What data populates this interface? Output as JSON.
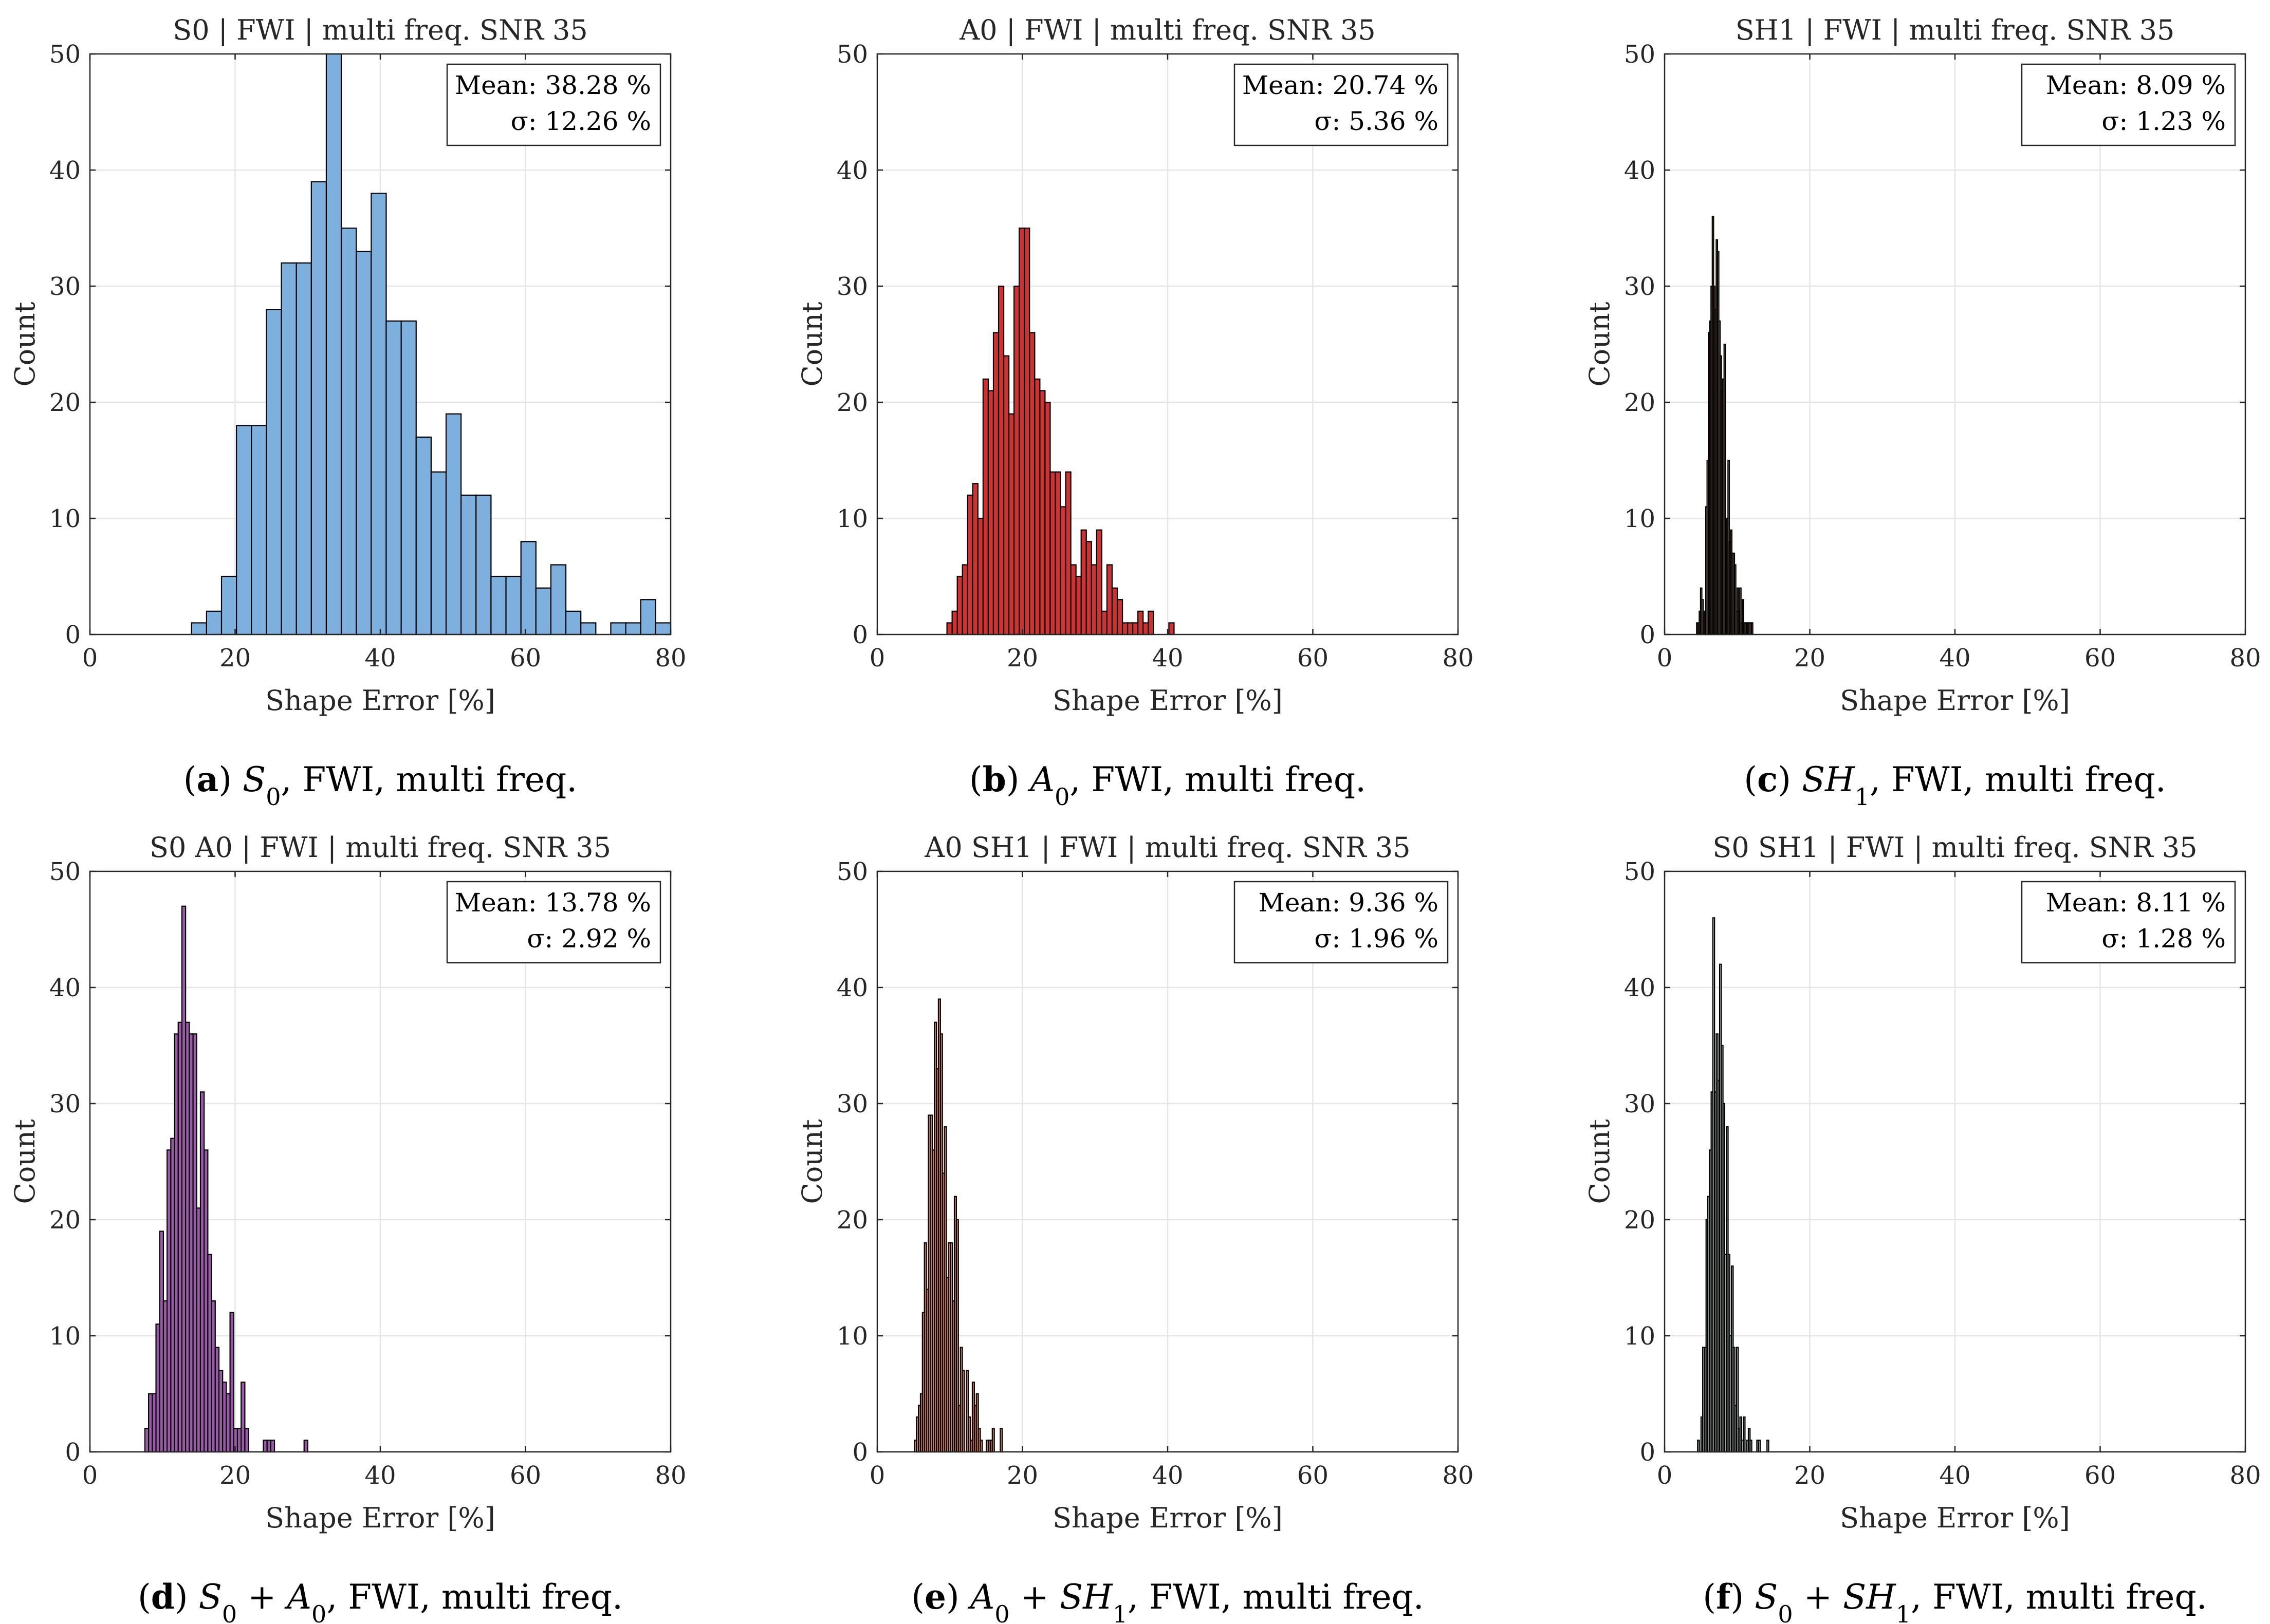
{
  "chart_data": [
    {
      "type": "bar",
      "panel": "a",
      "title": "S0 | FWI | multi freq. SNR 35",
      "xlabel": "Shape Error [%]",
      "ylabel": "Count",
      "xlim": [
        0,
        80
      ],
      "ylim": [
        0,
        50
      ],
      "xticks": [
        "0",
        "20",
        "40",
        "60",
        "80"
      ],
      "yticks": [
        "0",
        "10",
        "20",
        "30",
        "40",
        "50"
      ],
      "grid": true,
      "legend_lines": [
        "Mean: 38.28 %",
        "σ: 12.26 %"
      ],
      "legend_position": "top-right",
      "color": "#7eb0de",
      "bin_start": 14,
      "bin_width": 2.0625,
      "counts": [
        1,
        2,
        5,
        18,
        18,
        28,
        32,
        32,
        39,
        50,
        35,
        33,
        38,
        27,
        27,
        17,
        14,
        19,
        12,
        12,
        5,
        5,
        8,
        4,
        6,
        2,
        1,
        0,
        1,
        1,
        3,
        1
      ],
      "caption": {
        "label": "a",
        "parts": [
          {
            "t": "S",
            "i": true
          },
          {
            "t": "0",
            "sub": true
          },
          {
            "t": ", FWI, multi freq."
          }
        ]
      }
    },
    {
      "type": "bar",
      "panel": "b",
      "title": "A0 | FWI | multi freq. SNR 35",
      "xlabel": "Shape Error [%]",
      "ylabel": "Count",
      "xlim": [
        0,
        80
      ],
      "ylim": [
        0,
        50
      ],
      "xticks": [
        "0",
        "20",
        "40",
        "60",
        "80"
      ],
      "yticks": [
        "0",
        "10",
        "20",
        "30",
        "40",
        "50"
      ],
      "grid": true,
      "legend_lines": [
        "Mean: 20.74 %",
        "σ: 5.36 %"
      ],
      "legend_position": "top-right",
      "color": "#cd3333",
      "bin_start": 9.6,
      "bin_width": 0.711,
      "counts": [
        1,
        2,
        5,
        6,
        12,
        13,
        10,
        22,
        21,
        26,
        30,
        24,
        19,
        30,
        35,
        35,
        26,
        22,
        21,
        20,
        14,
        14,
        11,
        14,
        6,
        5,
        9,
        8,
        6,
        9,
        2,
        6,
        4,
        3,
        1,
        1,
        1,
        2,
        1,
        2,
        0,
        0,
        0,
        1
      ],
      "caption": {
        "label": "b",
        "parts": [
          {
            "t": "A",
            "i": true
          },
          {
            "t": "0",
            "sub": true
          },
          {
            "t": ", FWI, multi freq."
          }
        ]
      }
    },
    {
      "type": "bar",
      "panel": "c",
      "title": "SH1 | FWI | multi freq. SNR 35",
      "xlabel": "Shape Error [%]",
      "ylabel": "Count",
      "xlim": [
        0,
        80
      ],
      "ylim": [
        0,
        50
      ],
      "xticks": [
        "0",
        "20",
        "40",
        "60",
        "80"
      ],
      "yticks": [
        "0",
        "10",
        "20",
        "30",
        "40",
        "50"
      ],
      "grid": true,
      "legend_lines": [
        "Mean: 8.09 %",
        "σ: 1.23 %"
      ],
      "legend_position": "top-right",
      "color": "#edc04f",
      "bin_start": 4.41,
      "bin_width": 0.18,
      "counts": [
        1,
        1,
        2,
        4,
        3,
        2,
        2,
        11,
        15,
        26,
        27,
        30,
        36,
        30,
        28,
        34,
        33,
        27,
        24,
        21,
        22,
        25,
        10,
        10,
        15,
        8,
        9,
        7,
        7,
        6,
        2,
        4,
        2,
        4,
        1,
        3,
        1,
        1,
        1,
        1,
        1,
        1,
        1
      ],
      "caption": {
        "label": "c",
        "parts": [
          {
            "t": "SH",
            "i": true
          },
          {
            "t": "1",
            "sub": true
          },
          {
            "t": ", FWI, multi freq."
          }
        ]
      }
    },
    {
      "type": "bar",
      "panel": "d",
      "title": "S0 A0 | FWI | multi freq. SNR 35",
      "xlabel": "Shape Error [%]",
      "ylabel": "Count",
      "xlim": [
        0,
        80
      ],
      "ylim": [
        0,
        50
      ],
      "xticks": [
        "0",
        "20",
        "40",
        "60",
        "80"
      ],
      "yticks": [
        "0",
        "10",
        "20",
        "30",
        "40",
        "50"
      ],
      "grid": true,
      "legend_lines": [
        "Mean: 13.78 %",
        "σ: 2.92 %"
      ],
      "legend_position": "top-right",
      "color": "#9a5aa7",
      "bin_start": 7.57,
      "bin_width": 0.51,
      "counts": [
        2,
        5,
        5,
        11,
        19,
        13,
        26,
        27,
        36,
        37,
        47,
        37,
        36,
        36,
        21,
        31,
        26,
        17,
        13,
        9,
        7,
        6,
        5,
        12,
        2,
        2,
        6,
        2,
        0,
        0,
        0,
        0,
        1,
        1,
        1,
        0,
        0,
        0,
        0,
        0,
        0,
        0,
        0,
        1
      ],
      "caption": {
        "label": "d",
        "parts": [
          {
            "t": "S",
            "i": true
          },
          {
            "t": "0",
            "sub": true
          },
          {
            "t": " + "
          },
          {
            "t": "A",
            "i": true
          },
          {
            "t": "0",
            "sub": true
          },
          {
            "t": ", FWI, multi freq."
          }
        ]
      }
    },
    {
      "type": "bar",
      "panel": "e",
      "title": "A0 SH1 | FWI | multi freq. SNR 35",
      "xlabel": "Shape Error [%]",
      "ylabel": "Count",
      "xlim": [
        0,
        80
      ],
      "ylim": [
        0,
        50
      ],
      "xticks": [
        "0",
        "20",
        "40",
        "60",
        "80"
      ],
      "yticks": [
        "0",
        "10",
        "20",
        "30",
        "40",
        "50"
      ],
      "grid": true,
      "legend_lines": [
        "Mean: 9.36 %",
        "σ: 1.96 %"
      ],
      "legend_position": "top-right",
      "color": "#e0843c",
      "bin_start": 5.12,
      "bin_width": 0.275,
      "counts": [
        1,
        3,
        4,
        5,
        12,
        18,
        14,
        29,
        29,
        26,
        37,
        33,
        39,
        36,
        24,
        28,
        15,
        18,
        18,
        13,
        22,
        20,
        4,
        9,
        7,
        0,
        7,
        3,
        1,
        6,
        4,
        5,
        2,
        1,
        0,
        0,
        1,
        1,
        1,
        2,
        0,
        0,
        0,
        2
      ],
      "caption": {
        "label": "e",
        "parts": [
          {
            "t": "A",
            "i": true
          },
          {
            "t": "0",
            "sub": true
          },
          {
            "t": " + "
          },
          {
            "t": "SH",
            "i": true
          },
          {
            "t": "1",
            "sub": true
          },
          {
            "t": ", FWI, multi freq."
          }
        ]
      }
    },
    {
      "type": "bar",
      "panel": "f",
      "title": "S0 SH1 | FWI | multi freq. SNR 35",
      "xlabel": "Shape Error [%]",
      "ylabel": "Count",
      "xlim": [
        0,
        80
      ],
      "ylim": [
        0,
        50
      ],
      "xticks": [
        "0",
        "20",
        "40",
        "60",
        "80"
      ],
      "yticks": [
        "0",
        "10",
        "20",
        "30",
        "40",
        "50"
      ],
      "grid": true,
      "legend_lines": [
        "Mean: 8.11 %",
        "σ: 1.28 %"
      ],
      "legend_position": "top-right",
      "color": "#a3b3ab",
      "bin_start": 4.55,
      "bin_width": 0.233,
      "counts": [
        1,
        0,
        3,
        9,
        9,
        20,
        22,
        26,
        31,
        46,
        31,
        36,
        32,
        42,
        35,
        30,
        17,
        28,
        17,
        10,
        16,
        9,
        4,
        9,
        2,
        3,
        1,
        3,
        0,
        1,
        2,
        1,
        0,
        0,
        0,
        1,
        1,
        0,
        0,
        0,
        0,
        1
      ],
      "caption": {
        "label": "f",
        "parts": [
          {
            "t": "S",
            "i": true
          },
          {
            "t": "0",
            "sub": true
          },
          {
            "t": " + "
          },
          {
            "t": "SH",
            "i": true
          },
          {
            "t": "1",
            "sub": true
          },
          {
            "t": ", FWI, multi freq."
          }
        ]
      }
    }
  ]
}
